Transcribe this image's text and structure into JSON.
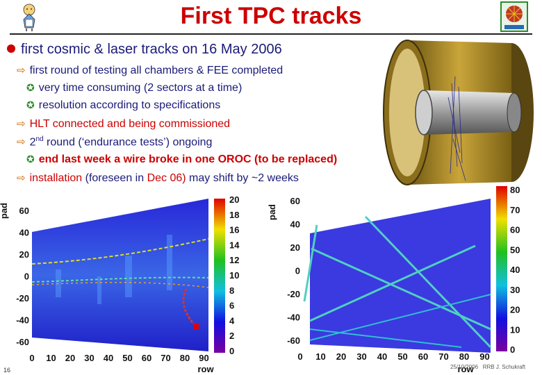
{
  "title": "First TPC tracks",
  "main_bullet": "first cosmic & laser tracks on 16 May 2006",
  "items": {
    "l1": "first round of testing all chambers & FEE completed",
    "l2": "very time consuming (2 sectors at a time)",
    "l3": "resolution according to specifications",
    "l4": "HLT connected and being commissioned",
    "l5_a": "2",
    "l5_sup": "nd",
    "l5_b": " round (‘endurance tests’) ongoing",
    "l6": "end last week a wire broke in one OROC (to be replaced)",
    "l7_a": "installation",
    "l7_b": " (foreseen in ",
    "l7_c": "Dec 06)",
    "l7_d": " may shift by ~2 weeks"
  },
  "plot_left": {
    "ylabel": "pad",
    "xlabel": "row",
    "yticks": [
      "60",
      "40",
      "20",
      "0",
      "-20",
      "-40",
      "-60"
    ],
    "xticks": [
      "0",
      "10",
      "20",
      "30",
      "40",
      "50",
      "60",
      "70",
      "80",
      "90"
    ],
    "colorbar": [
      "20",
      "18",
      "16",
      "14",
      "12",
      "10",
      "8",
      "6",
      "4",
      "2",
      "0"
    ]
  },
  "plot_right": {
    "ylabel": "pad",
    "xlabel": "row",
    "yticks": [
      "60",
      "40",
      "20",
      "0",
      "-20",
      "-40",
      "-60"
    ],
    "xticks": [
      "0",
      "10",
      "20",
      "30",
      "40",
      "50",
      "60",
      "70",
      "80",
      "90"
    ],
    "colorbar": [
      "80",
      "70",
      "60",
      "50",
      "40",
      "30",
      "20",
      "10",
      "0"
    ]
  },
  "footer": {
    "page": "16",
    "right": "25/10/2006    RRB J. Schukraft"
  },
  "colors": {
    "title": "#cc0000",
    "text": "#1a1a7a",
    "accent": "#cc6600",
    "check": "#2a8a2a"
  }
}
